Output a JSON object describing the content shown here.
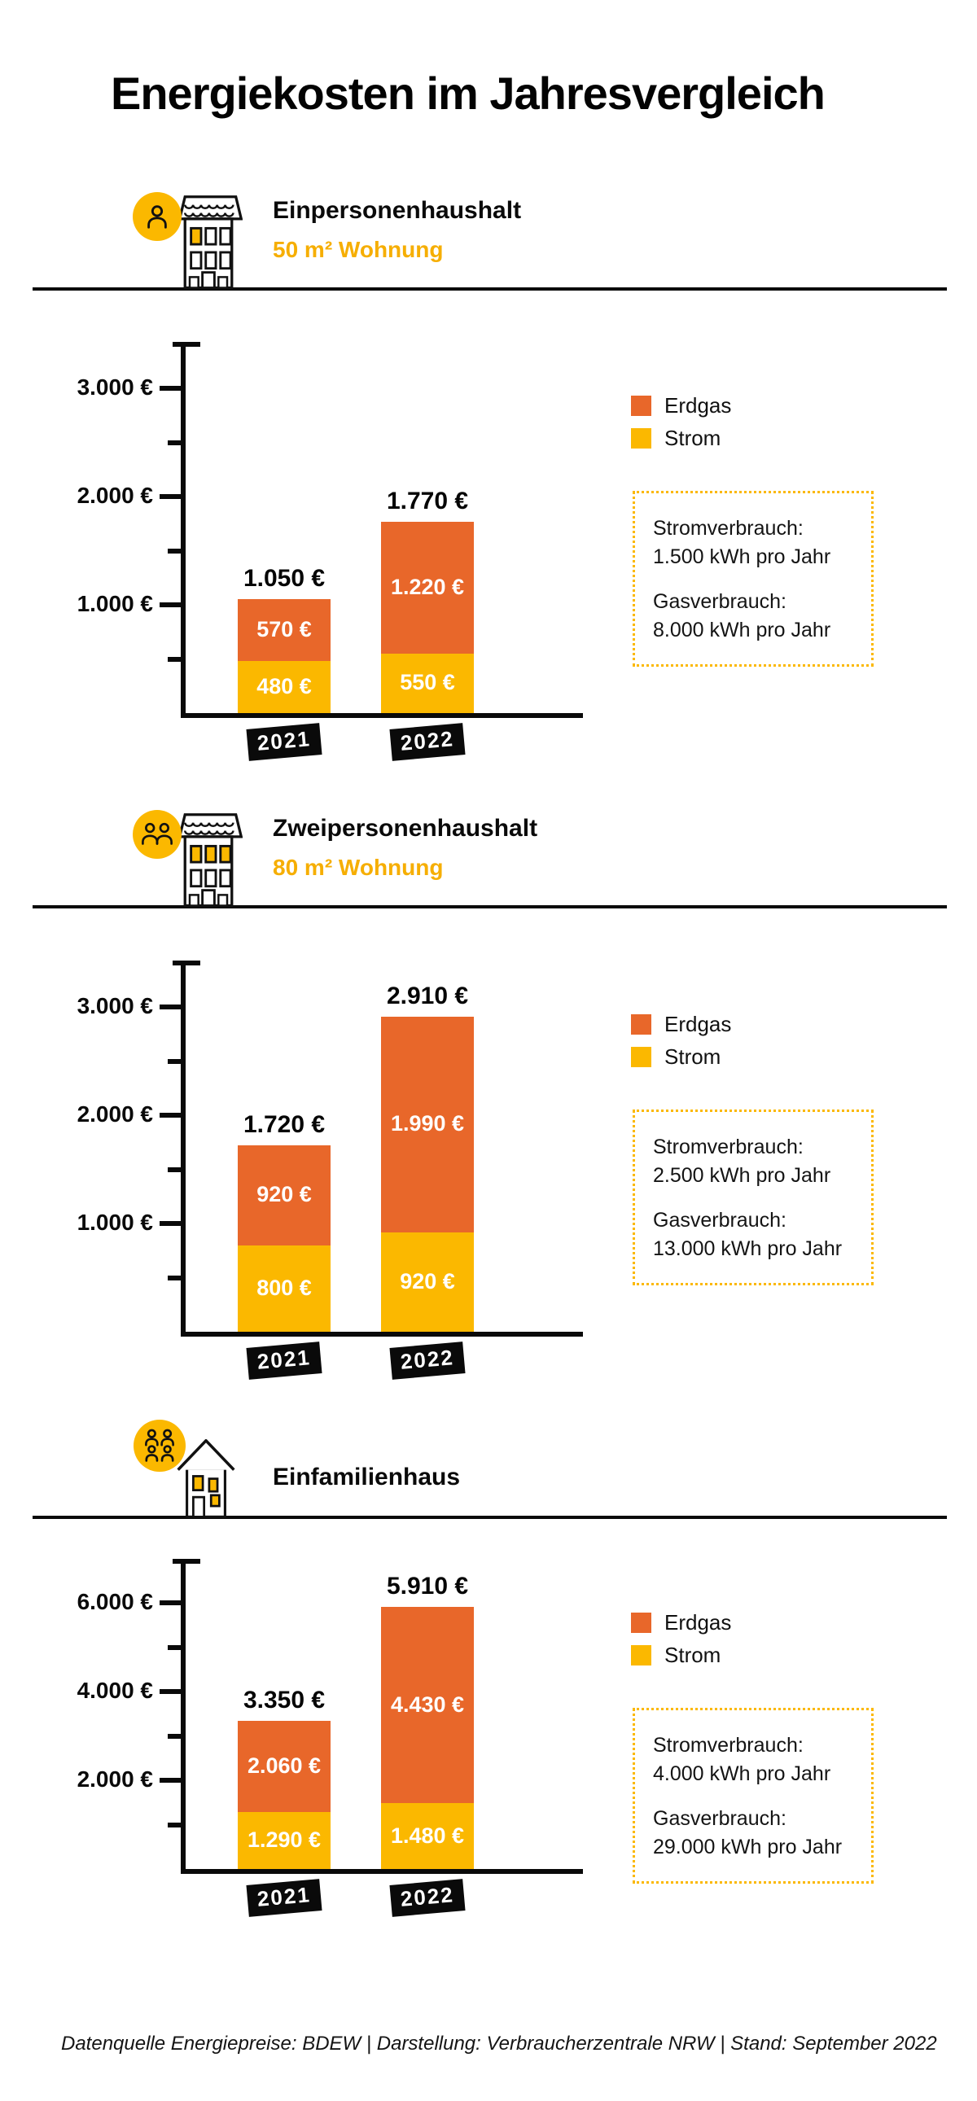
{
  "title": "Energiekosten im Jahresvergleich",
  "footer": "Datenquelle Energiepreise: BDEW | Darstellung: Verbraucherzentrale NRW | Stand: September 2022",
  "colors": {
    "erdgas": "#E8672A",
    "strom": "#FBB800",
    "subtitle_yellow": "#F6AE00",
    "axis_black": "#0a0a0a",
    "tag_bg": "#0a0a0a",
    "tag_text": "#ffffff"
  },
  "legend": {
    "erdgas": "Erdgas",
    "strom": "Strom"
  },
  "sections": [
    {
      "heading": "Einpersonenhaushalt",
      "subheading": "50 m² Wohnung",
      "icon": "single-person-apartment",
      "consumption": {
        "strom_label": "Stromverbrauch:",
        "strom_value": "1.500 kWh pro Jahr",
        "gas_label": "Gasverbrauch:",
        "gas_value": "8.000 kWh pro Jahr"
      }
    },
    {
      "heading": "Zweipersonenhaushalt",
      "subheading": "80 m² Wohnung",
      "icon": "two-person-apartment",
      "consumption": {
        "strom_label": "Stromverbrauch:",
        "strom_value": "2.500 kWh pro Jahr",
        "gas_label": "Gasverbrauch:",
        "gas_value": "13.000 kWh pro Jahr"
      }
    },
    {
      "heading": "Einfamilienhaus",
      "subheading": "",
      "icon": "family-house",
      "consumption": {
        "strom_label": "Stromverbrauch:",
        "strom_value": "4.000 kWh pro Jahr",
        "gas_label": "Gasverbrauch:",
        "gas_value": "29.000 kWh pro Jahr"
      }
    }
  ],
  "chart_data": [
    {
      "type": "bar",
      "stacked": true,
      "title": "Einpersonenhaushalt 50 m² Wohnung",
      "categories": [
        "2021",
        "2022"
      ],
      "series": [
        {
          "name": "Strom",
          "values": [
            480,
            550
          ],
          "labels": [
            "480 €",
            "550 €"
          ]
        },
        {
          "name": "Erdgas",
          "values": [
            570,
            1220
          ],
          "labels": [
            "570 €",
            "1.220 €"
          ]
        }
      ],
      "totals": [
        1050,
        1770
      ],
      "total_labels": [
        "1.050 €",
        "1.770 €"
      ],
      "ylim": [
        0,
        3430
      ],
      "yticks_major": [
        1000,
        2000,
        3000
      ],
      "yticks_minor": [
        500,
        1500,
        2500
      ],
      "ytick_labels": [
        "1.000 €",
        "2.000 €",
        "3.000 €"
      ],
      "legend_position": "right",
      "grid": false
    },
    {
      "type": "bar",
      "stacked": true,
      "title": "Zweipersonenhaushalt 80 m² Wohnung",
      "categories": [
        "2021",
        "2022"
      ],
      "series": [
        {
          "name": "Strom",
          "values": [
            800,
            920
          ],
          "labels": [
            "800 €",
            "920 €"
          ]
        },
        {
          "name": "Erdgas",
          "values": [
            920,
            1990
          ],
          "labels": [
            "920 €",
            "1.990 €"
          ]
        }
      ],
      "totals": [
        1720,
        2910
      ],
      "total_labels": [
        "1.720 €",
        "2.910 €"
      ],
      "ylim": [
        0,
        3430
      ],
      "yticks_major": [
        1000,
        2000,
        3000
      ],
      "yticks_minor": [
        500,
        1500,
        2500
      ],
      "ytick_labels": [
        "1.000 €",
        "2.000 €",
        "3.000 €"
      ],
      "legend_position": "right",
      "grid": false
    },
    {
      "type": "bar",
      "stacked": true,
      "title": "Einfamilienhaus",
      "categories": [
        "2021",
        "2022"
      ],
      "series": [
        {
          "name": "Strom",
          "values": [
            1290,
            1480
          ],
          "labels": [
            "1.290 €",
            "1.480 €"
          ]
        },
        {
          "name": "Erdgas",
          "values": [
            2060,
            4430
          ],
          "labels": [
            "2.060 €",
            "4.430 €"
          ]
        }
      ],
      "totals": [
        3350,
        5910
      ],
      "total_labels": [
        "3.350 €",
        "5.910 €"
      ],
      "ylim": [
        0,
        7000
      ],
      "yticks_major": [
        2000,
        4000,
        6000
      ],
      "yticks_minor": [
        1000,
        3000,
        5000
      ],
      "ytick_labels": [
        "2.000 €",
        "4.000 €",
        "6.000 €"
      ],
      "legend_position": "right",
      "grid": false
    }
  ]
}
